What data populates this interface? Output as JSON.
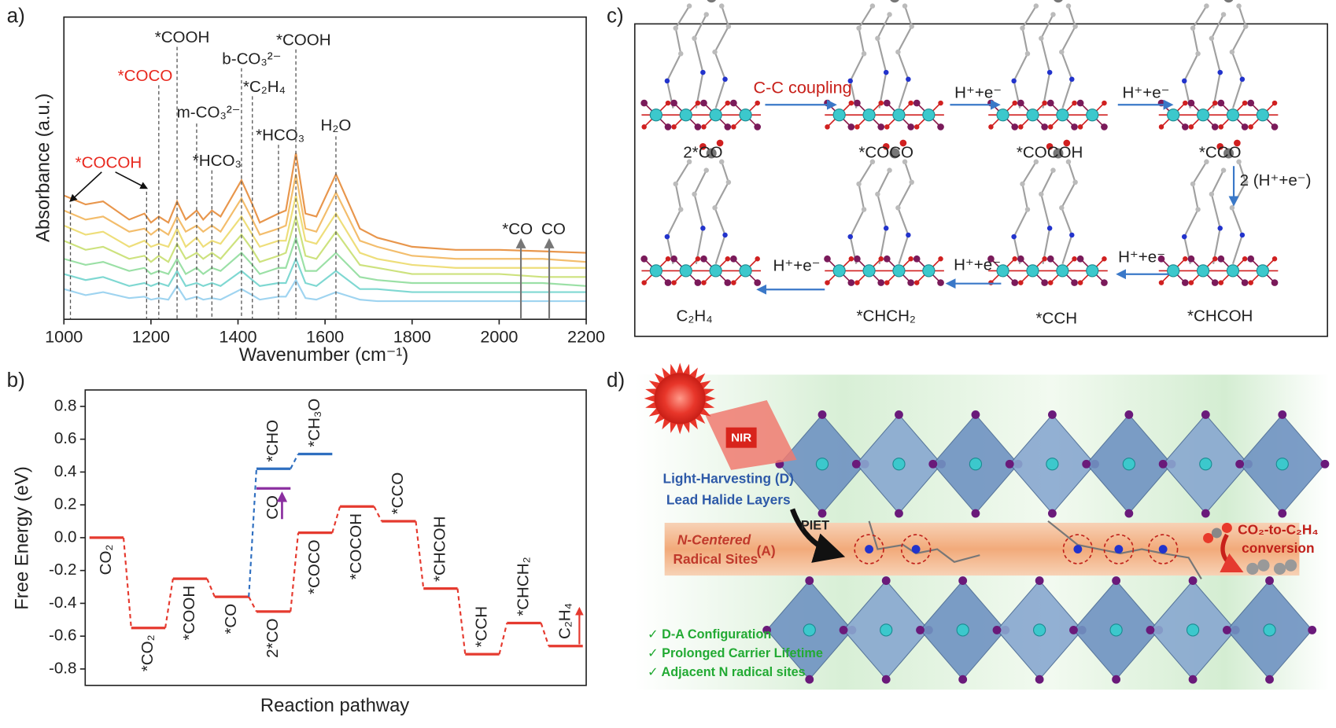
{
  "panel_labels": [
    "a)",
    "b)",
    "c)",
    "d)"
  ],
  "chart_data": [
    {
      "type": "line",
      "ylabel": "Absorbance (a.u.)",
      "xlabel": "Wavenumber (cm⁻¹)",
      "x": [
        1000,
        1050,
        1090,
        1150,
        1185,
        1200,
        1218,
        1240,
        1260,
        1280,
        1305,
        1320,
        1340,
        1360,
        1408,
        1433,
        1450,
        1493,
        1510,
        1533,
        1555,
        1580,
        1625,
        1680,
        1720,
        1800,
        1900,
        2000,
        2100,
        2200
      ],
      "series": [
        {
          "color": "#9fd4f0",
          "values": [
            10,
            8,
            9,
            7,
            7.5,
            6.5,
            7,
            6.5,
            11,
            6.5,
            7.5,
            6.5,
            7,
            6.5,
            10,
            8,
            6.5,
            7.5,
            7.5,
            13,
            7,
            6.5,
            9,
            6.5,
            6,
            6,
            6,
            6,
            6,
            6
          ]
        },
        {
          "color": "#7fd8d2",
          "values": [
            15,
            13,
            14,
            11,
            12,
            11,
            12,
            11,
            16,
            11,
            12,
            11,
            12,
            11,
            16,
            13,
            11,
            12,
            12,
            20,
            12,
            11,
            16,
            10,
            10,
            9,
            9,
            9,
            9,
            9
          ]
        },
        {
          "color": "#9be0a6",
          "values": [
            20,
            18,
            19,
            16,
            17,
            15,
            16,
            15,
            20,
            15,
            17,
            15,
            17,
            16,
            22,
            18,
            15,
            17,
            17,
            27,
            16,
            16,
            22,
            14,
            13,
            12,
            12,
            12,
            12,
            11
          ]
        },
        {
          "color": "#cde27e",
          "values": [
            26,
            23,
            24,
            20,
            21,
            19,
            21,
            19,
            25,
            20,
            22,
            20,
            22,
            20,
            28,
            23,
            19,
            21,
            22,
            34,
            21,
            20,
            29,
            18,
            17,
            15,
            15,
            15,
            14,
            14
          ]
        },
        {
          "color": "#eede7a",
          "values": [
            31,
            28,
            29,
            24,
            26,
            24,
            25,
            24,
            30,
            24,
            27,
            24,
            26,
            25,
            34,
            28,
            24,
            26,
            26,
            41,
            26,
            25,
            35,
            22,
            20,
            18,
            17,
            17,
            17,
            17
          ]
        },
        {
          "color": "#f3bd6c",
          "values": [
            36,
            33,
            34,
            29,
            30,
            28,
            30,
            28,
            34,
            29,
            31,
            29,
            31,
            29,
            40,
            33,
            28,
            30,
            31,
            48,
            30,
            29,
            42,
            26,
            24,
            21,
            20,
            20,
            20,
            19
          ]
        },
        {
          "color": "#e8964c",
          "values": [
            41,
            38,
            39,
            33,
            35,
            32,
            34,
            32,
            39,
            33,
            36,
            33,
            36,
            34,
            46,
            38,
            32,
            35,
            36,
            55,
            35,
            34,
            48,
            30,
            27,
            24,
            23,
            23,
            22.5,
            22
          ]
        }
      ],
      "xlim": [
        1000,
        2200
      ],
      "xticks": [
        1000,
        1200,
        1400,
        1600,
        1800,
        2000,
        2200
      ],
      "ylim": [
        0,
        100
      ],
      "annotations": [
        {
          "text": "*COCOH",
          "color": "#e8281e",
          "x": [
            1015,
            1190
          ]
        },
        {
          "text": "*COCO",
          "color": "#e8281e",
          "x": [
            1218
          ]
        },
        {
          "text": "*COOH",
          "color": "#222222",
          "x": [
            1260
          ]
        },
        {
          "text": "m-CO₃²⁻",
          "color": "#222222",
          "x": [
            1305
          ]
        },
        {
          "text": "*HCO₃",
          "color": "#222222",
          "x": [
            1340
          ]
        },
        {
          "text": "b-CO₃²⁻",
          "color": "#222222",
          "x": [
            1408
          ]
        },
        {
          "text": "*C₂H₄",
          "color": "#222222",
          "x": [
            1433
          ]
        },
        {
          "text": "*HCO₃",
          "color": "#222222",
          "x": [
            1493
          ]
        },
        {
          "text": "*COOH",
          "color": "#222222",
          "x": [
            1533
          ]
        },
        {
          "text": "H₂O",
          "color": "#222222",
          "x": [
            1625
          ]
        },
        {
          "text": "*CO",
          "color": "#222222",
          "x": [
            2050
          ],
          "style": "arrow"
        },
        {
          "text": "CO",
          "color": "#222222",
          "x": [
            2115
          ],
          "style": "arrow"
        }
      ]
    },
    {
      "type": "step",
      "ylabel": "Free Energy (eV)",
      "xlabel": "Reaction pathway",
      "categories": [
        "CO₂",
        "*CO₂",
        "*COOH",
        "*CO",
        "2*CO",
        "*COCO",
        "*COCOH",
        "*CCO",
        "*CHCOH",
        "*CCH",
        "*CHCH₂",
        "C₂H₄"
      ],
      "series": [
        {
          "color": "#e53a2f",
          "values": [
            0.0,
            -0.55,
            -0.25,
            -0.36,
            -0.45,
            0.03,
            0.19,
            0.1,
            -0.31,
            -0.71,
            -0.52,
            -0.66
          ]
        },
        {
          "color": "#2f6fc0",
          "labels": [
            null,
            null,
            null,
            null,
            "*CHO",
            "*CH₃O",
            null,
            null,
            null,
            null,
            null,
            null
          ],
          "values": [
            null,
            null,
            null,
            null,
            0.42,
            0.51,
            null,
            null,
            null,
            null,
            null,
            null
          ]
        },
        {
          "color": "#8b2fa0",
          "labels": [
            null,
            null,
            null,
            null,
            "CO",
            null,
            null,
            null,
            null,
            null,
            null,
            null
          ],
          "values": [
            null,
            null,
            null,
            null,
            0.3,
            null,
            null,
            null,
            null,
            null,
            null,
            null
          ]
        }
      ],
      "ylim": [
        -0.9,
        0.9
      ],
      "yticks": [
        -0.8,
        -0.6,
        -0.4,
        -0.2,
        {
          "value": 0,
          "label": "0.0"
        },
        0.2,
        0.4,
        0.6,
        0.8
      ]
    }
  ],
  "scheme": {
    "intermediates": [
      "2*CO",
      "*COCO",
      "*COCOH",
      "*CCO",
      "*CHCOH",
      "*CCH",
      "*CHCH₂",
      "C₂H₄"
    ],
    "steps": [
      "C-C coupling",
      "H⁺+e⁻",
      "H⁺+e⁻",
      "2 (H⁺+e⁻)",
      "H⁺+e⁻",
      "H⁺+e⁻",
      "H⁺+e⁻"
    ]
  },
  "illustration": {
    "light": "NIR",
    "donor": [
      "Light-Harvesting (D)",
      "Lead Halide Layers"
    ],
    "transfer": "PIET",
    "acceptor": [
      "N-Centered",
      "Radical Sites",
      "(A)"
    ],
    "product": [
      "CO₂-to-C₂H₄",
      "conversion"
    ],
    "features": [
      "✓ D-A Configuration",
      "✓ Prolonged Carrier Lifetime",
      "✓ Adjacent N radical sites"
    ]
  }
}
